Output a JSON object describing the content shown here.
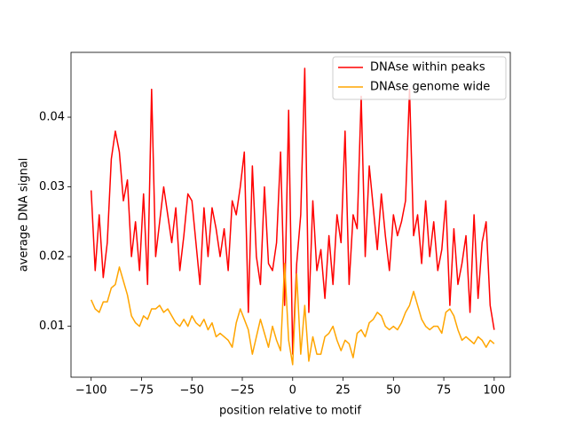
{
  "chart_data": {
    "type": "line",
    "xlabel": "position relative to motif",
    "ylabel": "average DNA signal",
    "x": [
      -100,
      -98,
      -96,
      -94,
      -92,
      -90,
      -88,
      -86,
      -84,
      -82,
      -80,
      -78,
      -76,
      -74,
      -72,
      -70,
      -68,
      -66,
      -64,
      -62,
      -60,
      -58,
      -56,
      -54,
      -52,
      -50,
      -48,
      -46,
      -44,
      -42,
      -40,
      -38,
      -36,
      -34,
      -32,
      -30,
      -28,
      -26,
      -24,
      -22,
      -20,
      -18,
      -16,
      -14,
      -12,
      -10,
      -8,
      -6,
      -4,
      -2,
      0,
      2,
      4,
      6,
      8,
      10,
      12,
      14,
      16,
      18,
      20,
      22,
      24,
      26,
      28,
      30,
      32,
      34,
      36,
      38,
      40,
      42,
      44,
      46,
      48,
      50,
      52,
      54,
      56,
      58,
      60,
      62,
      64,
      66,
      68,
      70,
      72,
      74,
      76,
      78,
      80,
      82,
      84,
      86,
      88,
      90,
      92,
      94,
      96,
      98,
      100
    ],
    "series": [
      {
        "name": "DNAse within peaks",
        "color": "#ff0000",
        "values": [
          0.0295,
          0.018,
          0.026,
          0.017,
          0.022,
          0.034,
          0.038,
          0.035,
          0.028,
          0.031,
          0.02,
          0.025,
          0.018,
          0.029,
          0.016,
          0.044,
          0.02,
          0.025,
          0.03,
          0.026,
          0.022,
          0.027,
          0.018,
          0.023,
          0.029,
          0.028,
          0.022,
          0.016,
          0.027,
          0.02,
          0.027,
          0.024,
          0.02,
          0.024,
          0.018,
          0.028,
          0.026,
          0.03,
          0.035,
          0.012,
          0.033,
          0.02,
          0.016,
          0.03,
          0.019,
          0.018,
          0.022,
          0.035,
          0.013,
          0.041,
          0.006,
          0.019,
          0.026,
          0.047,
          0.012,
          0.028,
          0.018,
          0.021,
          0.014,
          0.023,
          0.016,
          0.026,
          0.022,
          0.038,
          0.016,
          0.026,
          0.024,
          0.043,
          0.02,
          0.033,
          0.027,
          0.021,
          0.029,
          0.023,
          0.018,
          0.026,
          0.023,
          0.025,
          0.028,
          0.044,
          0.023,
          0.026,
          0.019,
          0.028,
          0.02,
          0.025,
          0.018,
          0.021,
          0.028,
          0.013,
          0.024,
          0.016,
          0.019,
          0.023,
          0.012,
          0.026,
          0.014,
          0.022,
          0.025,
          0.013,
          0.0095
        ]
      },
      {
        "name": "DNAse genome wide",
        "color": "#ffa500",
        "values": [
          0.0138,
          0.0125,
          0.012,
          0.0135,
          0.0135,
          0.0155,
          0.016,
          0.0185,
          0.0165,
          0.0145,
          0.0115,
          0.0105,
          0.01,
          0.0115,
          0.011,
          0.0125,
          0.0125,
          0.013,
          0.012,
          0.0125,
          0.0115,
          0.0105,
          0.01,
          0.011,
          0.01,
          0.0115,
          0.0105,
          0.01,
          0.011,
          0.0095,
          0.0105,
          0.0085,
          0.009,
          0.0085,
          0.008,
          0.007,
          0.0105,
          0.0125,
          0.011,
          0.0095,
          0.006,
          0.0085,
          0.011,
          0.009,
          0.007,
          0.01,
          0.008,
          0.0065,
          0.019,
          0.008,
          0.0045,
          0.0175,
          0.006,
          0.013,
          0.005,
          0.0085,
          0.006,
          0.006,
          0.0085,
          0.009,
          0.01,
          0.008,
          0.0065,
          0.008,
          0.0075,
          0.0055,
          0.009,
          0.0095,
          0.0085,
          0.0105,
          0.011,
          0.012,
          0.0115,
          0.01,
          0.0095,
          0.01,
          0.0095,
          0.0105,
          0.012,
          0.013,
          0.015,
          0.013,
          0.011,
          0.01,
          0.0095,
          0.01,
          0.01,
          0.009,
          0.012,
          0.0125,
          0.0115,
          0.0095,
          0.008,
          0.0085,
          0.008,
          0.0075,
          0.0085,
          0.008,
          0.007,
          0.008,
          0.0075
        ]
      }
    ],
    "xlim": [
      -110,
      108
    ],
    "ylim": [
      0.0027,
      0.0493
    ],
    "xticks": [
      {
        "value": -100,
        "label": "−100"
      },
      {
        "value": -75,
        "label": "−75"
      },
      {
        "value": -50,
        "label": "−50"
      },
      {
        "value": -25,
        "label": "−25"
      },
      0,
      25,
      50,
      75,
      100
    ],
    "yticks": [
      0.01,
      0.02,
      0.03,
      0.04
    ],
    "legend": "upper right"
  }
}
